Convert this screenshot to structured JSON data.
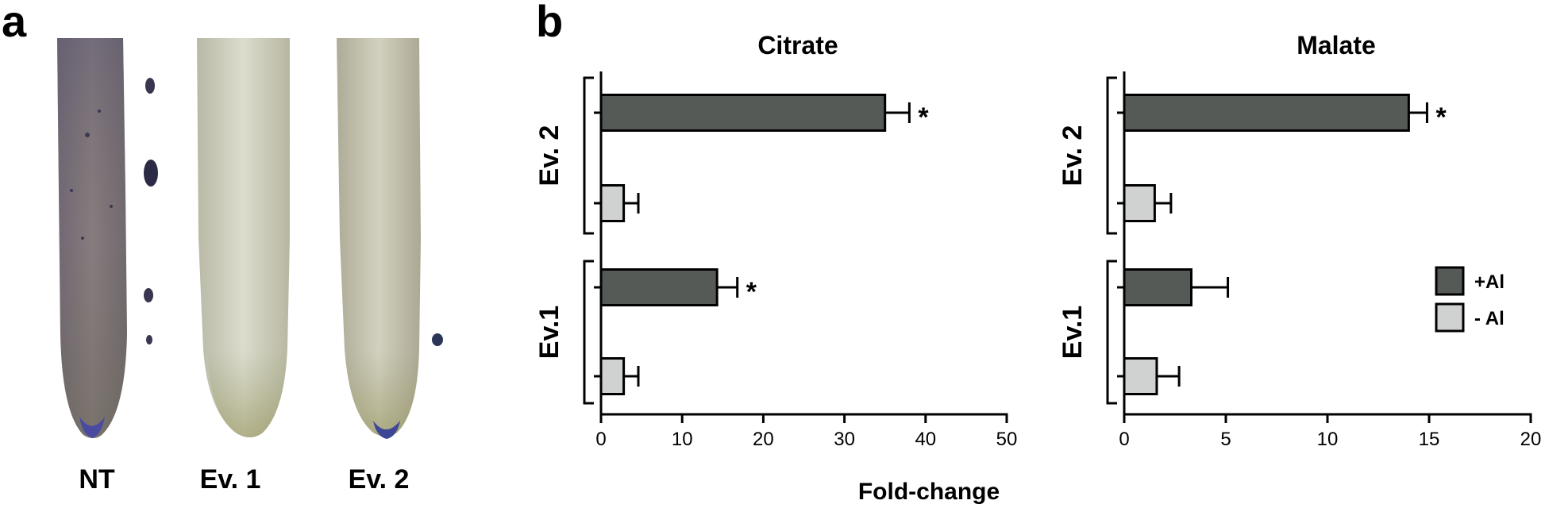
{
  "panel_a": {
    "letter": "a",
    "roots": [
      {
        "label": "NT"
      },
      {
        "label": "Ev. 1"
      },
      {
        "label": "Ev. 2"
      }
    ]
  },
  "panel_b": {
    "letter": "b",
    "xlabel": "Fold-change",
    "legend": [
      {
        "label": "+Al",
        "color": "#555a57"
      },
      {
        "label": "- Al",
        "color": "#d0d1d1"
      }
    ]
  },
  "chart_data": [
    {
      "type": "bar",
      "orientation": "horizontal",
      "title": "Citrate",
      "xlim": [
        0,
        50
      ],
      "xticks": [
        "0",
        "10",
        "20",
        "30",
        "40",
        "50"
      ],
      "groups": [
        "Ev. 2",
        "Ev.1"
      ],
      "series": [
        {
          "name": "+Al",
          "color": "#555a57",
          "values": [
            35,
            14.3
          ],
          "errors": [
            3,
            2.5
          ],
          "significant": [
            true,
            true
          ]
        },
        {
          "name": "- Al",
          "color": "#d0d1d1",
          "values": [
            2.8,
            2.8
          ],
          "errors": [
            1.8,
            1.8
          ],
          "significant": [
            false,
            false
          ]
        }
      ],
      "significance_marker": "*"
    },
    {
      "type": "bar",
      "orientation": "horizontal",
      "title": "Malate",
      "xlim": [
        0,
        20
      ],
      "xticks": [
        "0",
        "5",
        "10",
        "15",
        "20"
      ],
      "groups": [
        "Ev. 2",
        "Ev.1"
      ],
      "series": [
        {
          "name": "+Al",
          "color": "#555a57",
          "values": [
            14,
            3.3
          ],
          "errors": [
            0.9,
            1.8
          ],
          "significant": [
            true,
            false
          ]
        },
        {
          "name": "- Al",
          "color": "#d0d1d1",
          "values": [
            1.5,
            1.6
          ],
          "errors": [
            0.8,
            1.1
          ],
          "significant": [
            false,
            false
          ]
        }
      ],
      "significance_marker": "*"
    }
  ]
}
